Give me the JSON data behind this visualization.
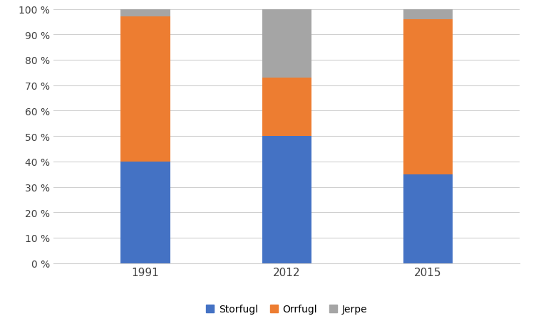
{
  "categories": [
    "1991",
    "2012",
    "2015"
  ],
  "series": {
    "Storfugl": [
      40,
      50,
      35
    ],
    "Orrfugl": [
      57,
      23,
      61
    ],
    "Jerpe": [
      3,
      27,
      4
    ]
  },
  "colors": {
    "Storfugl": "#4472C4",
    "Orrfugl": "#ED7D31",
    "Jerpe": "#A5A5A5"
  },
  "ylim": [
    0,
    100
  ],
  "ytick_labels": [
    "0 %",
    "10 %",
    "20 %",
    "30 %",
    "40 %",
    "50 %",
    "60 %",
    "70 %",
    "80 %",
    "90 %",
    "100 %"
  ],
  "ytick_values": [
    0,
    10,
    20,
    30,
    40,
    50,
    60,
    70,
    80,
    90,
    100
  ],
  "legend_order": [
    "Storfugl",
    "Orrfugl",
    "Jerpe"
  ],
  "background_color": "#ffffff",
  "plot_bg_color": "#ffffff",
  "grid_color": "#d0d0d0",
  "bar_width": 0.35
}
